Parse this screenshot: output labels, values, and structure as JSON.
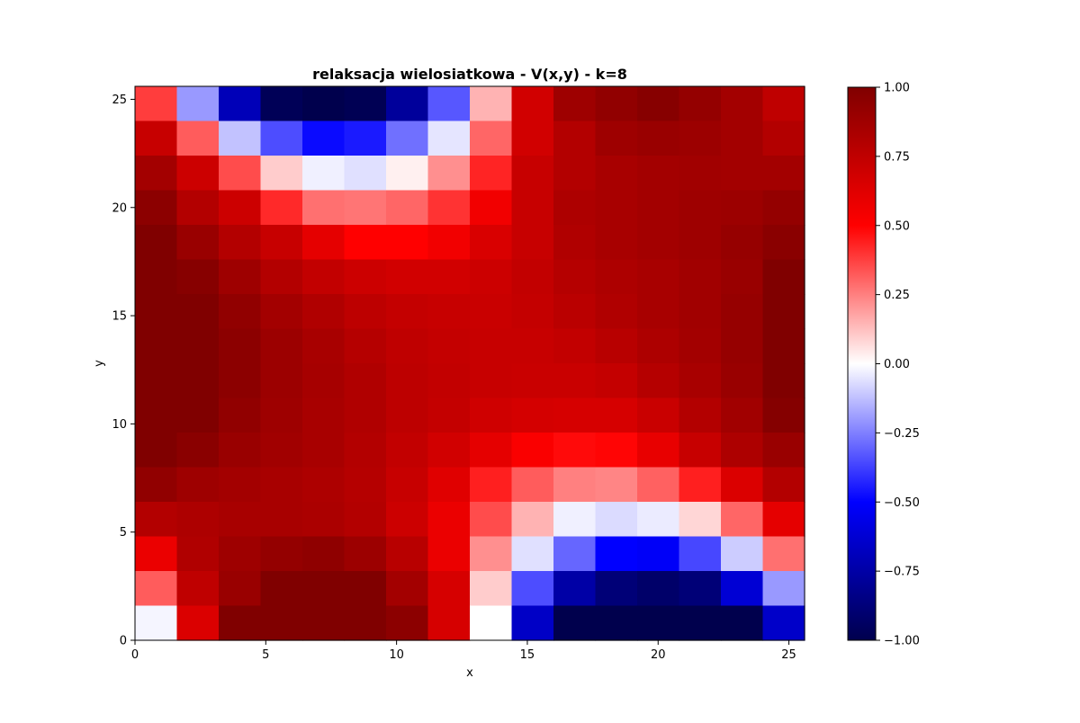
{
  "chart_data": {
    "type": "heatmap",
    "title": "relaksacja wielosiatkowa - V(x,y) - k=8",
    "xlabel": "x",
    "ylabel": "y",
    "xlim": [
      0,
      25.6
    ],
    "ylim": [
      0,
      25.6
    ],
    "x_ticks": [
      0,
      5,
      10,
      15,
      20,
      25
    ],
    "y_ticks": [
      0,
      5,
      10,
      15,
      20,
      25
    ],
    "colormap": "seismic",
    "vmin": -1.0,
    "vmax": 1.0,
    "colorbar_ticks": [
      1.0,
      0.75,
      0.5,
      0.25,
      0.0,
      -0.25,
      -0.5,
      -0.75,
      -1.0
    ],
    "colorbar_tick_labels": [
      "1.00",
      "0.75",
      "0.50",
      "0.25",
      "0.00",
      "−0.25",
      "−0.50",
      "−0.75",
      "−1.00"
    ],
    "grid": false,
    "cell_size": 1.6,
    "rows_top_to_bottom": [
      [
        0.38,
        -0.2,
        -0.7,
        -0.97,
        -1.0,
        -0.98,
        -0.78,
        -0.33,
        0.15,
        0.68,
        0.88,
        0.93,
        0.97,
        0.92,
        0.86,
        0.75
      ],
      [
        0.72,
        0.32,
        -0.12,
        -0.35,
        -0.48,
        -0.45,
        -0.28,
        -0.05,
        0.3,
        0.68,
        0.8,
        0.88,
        0.9,
        0.89,
        0.86,
        0.8
      ],
      [
        0.86,
        0.7,
        0.35,
        0.1,
        -0.03,
        -0.06,
        0.03,
        0.22,
        0.43,
        0.72,
        0.8,
        0.84,
        0.86,
        0.87,
        0.86,
        0.86
      ],
      [
        0.95,
        0.8,
        0.7,
        0.42,
        0.28,
        0.27,
        0.3,
        0.4,
        0.55,
        0.72,
        0.82,
        0.84,
        0.86,
        0.88,
        0.89,
        0.92
      ],
      [
        1.05,
        0.9,
        0.8,
        0.72,
        0.6,
        0.5,
        0.5,
        0.55,
        0.65,
        0.72,
        0.81,
        0.84,
        0.86,
        0.88,
        0.91,
        0.96
      ],
      [
        1.13,
        0.97,
        0.88,
        0.8,
        0.74,
        0.7,
        0.68,
        0.68,
        0.7,
        0.74,
        0.79,
        0.82,
        0.84,
        0.87,
        0.9,
        1.0
      ],
      [
        1.17,
        1.01,
        0.93,
        0.86,
        0.81,
        0.76,
        0.73,
        0.72,
        0.71,
        0.73,
        0.77,
        0.81,
        0.84,
        0.87,
        0.91,
        1.02
      ],
      [
        1.19,
        1.03,
        0.95,
        0.89,
        0.84,
        0.79,
        0.75,
        0.73,
        0.72,
        0.72,
        0.74,
        0.78,
        0.82,
        0.86,
        0.91,
        1.03
      ],
      [
        1.19,
        1.03,
        0.95,
        0.89,
        0.85,
        0.81,
        0.76,
        0.74,
        0.72,
        0.71,
        0.71,
        0.73,
        0.79,
        0.84,
        0.9,
        1.02
      ],
      [
        1.14,
        1.0,
        0.93,
        0.88,
        0.84,
        0.81,
        0.76,
        0.73,
        0.69,
        0.67,
        0.66,
        0.66,
        0.71,
        0.8,
        0.87,
        0.98
      ],
      [
        1.06,
        0.96,
        0.9,
        0.87,
        0.84,
        0.8,
        0.74,
        0.68,
        0.6,
        0.52,
        0.48,
        0.49,
        0.59,
        0.72,
        0.82,
        0.9
      ],
      [
        0.93,
        0.88,
        0.86,
        0.84,
        0.82,
        0.79,
        0.72,
        0.62,
        0.44,
        0.32,
        0.25,
        0.24,
        0.31,
        0.44,
        0.64,
        0.8
      ],
      [
        0.8,
        0.82,
        0.84,
        0.84,
        0.83,
        0.8,
        0.7,
        0.58,
        0.35,
        0.15,
        -0.03,
        -0.07,
        -0.04,
        0.08,
        0.3,
        0.6
      ],
      [
        0.58,
        0.81,
        0.88,
        0.92,
        0.94,
        0.89,
        0.78,
        0.58,
        0.22,
        -0.06,
        -0.3,
        -0.5,
        -0.52,
        -0.36,
        -0.1,
        0.28
      ],
      [
        0.32,
        0.75,
        0.9,
        1.0,
        1.05,
        1.03,
        0.86,
        0.66,
        0.1,
        -0.35,
        -0.75,
        -0.88,
        -0.92,
        -0.88,
        -0.62,
        -0.2
      ],
      [
        -0.02,
        0.64,
        1.0,
        1.17,
        1.22,
        1.19,
        0.95,
        0.66,
        0.0,
        -0.66,
        -1.25,
        -1.45,
        -1.55,
        -1.48,
        -1.25,
        -0.65
      ]
    ]
  }
}
